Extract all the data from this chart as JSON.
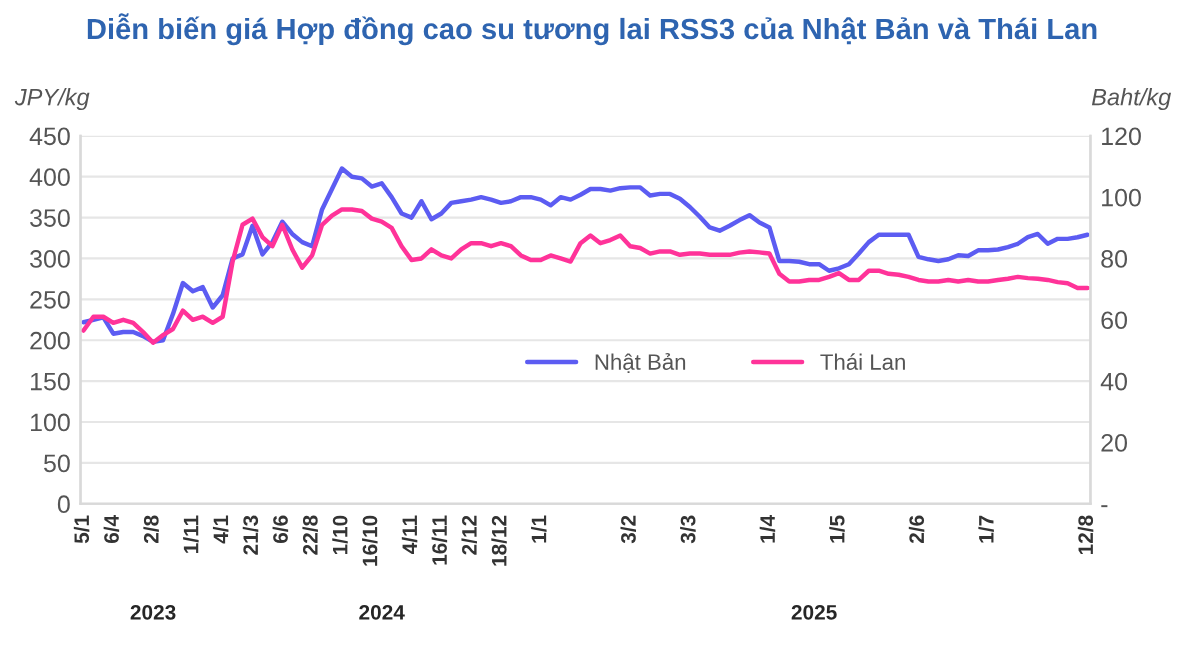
{
  "chart_data": {
    "type": "line",
    "title": "Diễn biến giá Hợp đồng cao su tương lai RSS3 của Nhật Bản và Thái Lan",
    "ylabel": "JPY/kg",
    "y2label": "Baht/kg",
    "categories": [
      "5/1",
      null,
      null,
      "6/4",
      null,
      null,
      null,
      "2/8",
      null,
      null,
      null,
      "1/11",
      null,
      null,
      "4/1",
      null,
      null,
      "21/3",
      null,
      null,
      "6/6",
      null,
      null,
      "22/8",
      null,
      null,
      "1/10",
      null,
      null,
      "16/10",
      null,
      null,
      null,
      "4/11",
      null,
      null,
      "16/11",
      null,
      null,
      "2/12",
      null,
      null,
      "18/12",
      null,
      null,
      null,
      "1/1",
      null,
      null,
      null,
      null,
      null,
      null,
      null,
      null,
      "3/2",
      null,
      null,
      null,
      null,
      null,
      "3/3",
      null,
      null,
      null,
      null,
      null,
      null,
      null,
      "1/4",
      null,
      null,
      null,
      null,
      null,
      null,
      "1/5",
      null,
      null,
      null,
      null,
      null,
      null,
      null,
      "2/6",
      null,
      null,
      null,
      null,
      null,
      null,
      "1/7",
      null,
      null,
      null,
      null,
      null,
      null,
      null,
      null,
      null,
      "12/8"
    ],
    "series": [
      {
        "name": "Nhật Bản",
        "color": "#5c5cf2",
        "values": [
          222,
          225,
          228,
          208,
          210,
          210,
          205,
          198,
          200,
          232,
          270,
          260,
          265,
          240,
          255,
          300,
          305,
          340,
          305,
          320,
          345,
          330,
          320,
          315,
          360,
          385,
          410,
          400,
          398,
          388,
          392,
          375,
          355,
          350,
          370,
          348,
          355,
          368,
          370,
          372,
          375,
          372,
          368,
          370,
          375,
          375,
          372,
          365,
          375,
          372,
          378,
          385,
          385,
          383,
          386,
          387,
          387,
          377,
          379,
          379,
          373,
          363,
          351,
          338,
          334,
          340,
          347,
          353,
          344,
          338,
          297,
          297,
          296,
          293,
          293,
          285,
          288,
          293,
          306,
          320,
          329,
          329,
          329,
          329,
          302,
          299,
          297,
          299,
          304,
          303,
          310,
          310,
          311,
          314,
          318,
          326,
          330,
          318,
          324,
          324,
          326,
          329
        ]
      },
      {
        "name": "Thái Lan",
        "color": "#ff3399",
        "axis": "y2",
        "values": [
          56.5,
          61,
          61,
          59,
          60,
          59,
          56,
          52.5,
          55,
          57,
          63,
          60,
          61,
          59,
          61,
          79,
          91,
          93,
          87,
          84,
          91,
          83,
          77,
          81,
          91,
          94,
          96,
          96,
          95.5,
          93,
          92,
          90,
          84,
          79.5,
          80,
          83,
          81,
          80,
          83,
          85,
          85,
          84,
          85,
          84,
          81,
          79.5,
          79.5,
          81,
          80,
          79,
          85,
          87.5,
          85,
          86,
          87.5,
          84,
          83.4,
          81.6,
          82.3,
          82.3,
          81.2,
          81.6,
          81.6,
          81.2,
          81.2,
          81.2,
          81.9,
          82.3,
          82,
          81.6,
          75,
          72.5,
          72.5,
          73,
          73,
          74,
          75.2,
          73,
          73,
          76,
          76,
          75,
          74.7,
          74,
          73,
          72.5,
          72.5,
          73,
          72.5,
          73,
          72.5,
          72.5,
          73,
          73.4,
          74,
          73.6,
          73.4,
          73,
          72.3,
          71.9,
          70.4,
          70.4
        ]
      }
    ],
    "ylim": [
      0,
      450
    ],
    "yticks": [
      0,
      50,
      100,
      150,
      200,
      250,
      300,
      350,
      400,
      450
    ],
    "y2lim": [
      0,
      120
    ],
    "y2ticks": [
      {
        "value": 0,
        "label": "-"
      },
      20,
      40,
      60,
      80,
      100,
      120
    ],
    "grid": "y",
    "legend": "center",
    "marker": "none",
    "line_style": "solid",
    "annotations": [
      "2023",
      "2024",
      "2025"
    ]
  }
}
